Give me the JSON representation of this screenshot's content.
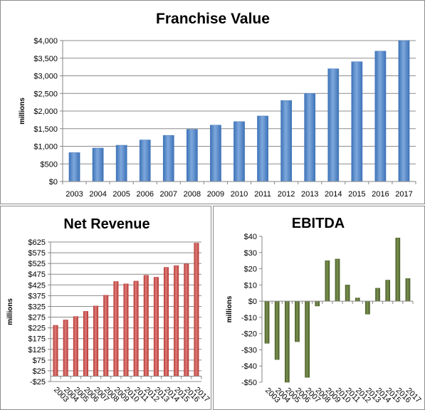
{
  "chart_data": [
    {
      "type": "bar",
      "title": "Franchise Value",
      "xlabel": "",
      "ylabel": "millions",
      "categories": [
        "2003",
        "2004",
        "2005",
        "2006",
        "2007",
        "2008",
        "2009",
        "2010",
        "2011",
        "2012",
        "2013",
        "2014",
        "2015",
        "2016",
        "2017"
      ],
      "values": [
        820,
        950,
        1030,
        1180,
        1310,
        1480,
        1600,
        1700,
        1860,
        2300,
        2500,
        3200,
        3400,
        3700,
        4000
      ],
      "ylim": [
        0,
        4000
      ],
      "yticks": [
        0,
        500,
        1000,
        1500,
        2000,
        2500,
        3000,
        3500,
        4000
      ],
      "ytick_labels": [
        "$0",
        "$500",
        "$1,000",
        "$1,500",
        "$2,000",
        "$2,500",
        "$3,000",
        "$3,500",
        "$4,000"
      ],
      "grid": true,
      "legend": "none",
      "bar_color": "#3d73b8",
      "bar_color_light": "#7fa8dc"
    },
    {
      "type": "bar",
      "title": "Net Revenue",
      "xlabel": "",
      "ylabel": "millions",
      "categories": [
        "2003",
        "2004",
        "2005",
        "2006",
        "2007",
        "2008",
        "2009",
        "2010",
        "2011",
        "2012",
        "2013",
        "2014",
        "2015",
        "2016",
        "2017"
      ],
      "values": [
        237,
        262,
        278,
        302,
        327,
        377,
        441,
        430,
        443,
        470,
        461,
        507,
        515,
        523,
        620
      ],
      "ylim": [
        -25,
        625
      ],
      "yticks": [
        -25,
        25,
        75,
        125,
        175,
        225,
        275,
        325,
        375,
        425,
        475,
        525,
        575,
        625
      ],
      "ytick_labels": [
        "-$25",
        "$25",
        "$75",
        "$125",
        "$175",
        "$225",
        "$275",
        "$325",
        "$375",
        "$425",
        "$475",
        "$525",
        "$575",
        "$625"
      ],
      "grid": true,
      "legend": "none",
      "bar_color": "#b83a36",
      "bar_color_light": "#de7e7a"
    },
    {
      "type": "bar",
      "title": "EBITDA",
      "xlabel": "",
      "ylabel": "millions",
      "categories": [
        "2003",
        "2004",
        "2005",
        "2006",
        "2007",
        "2008",
        "2009",
        "2010",
        "2011",
        "2012",
        "2013",
        "2014",
        "2015",
        "2016",
        "2017"
      ],
      "values": [
        -26,
        -36,
        -50,
        -25,
        -47,
        -3,
        25,
        26,
        10,
        2,
        -8,
        8,
        13,
        39,
        14
      ],
      "ylim": [
        -50,
        40
      ],
      "yticks": [
        -50,
        -40,
        -30,
        -20,
        -10,
        0,
        10,
        20,
        30,
        40
      ],
      "ytick_labels": [
        "-$50",
        "-$40",
        "-$30",
        "-$20",
        "-$10",
        "$0",
        "$10",
        "$20",
        "$30",
        "$40"
      ],
      "grid": false,
      "legend": "none",
      "bar_color": "#4b5e2a",
      "bar_color_light": "#7c9250"
    }
  ]
}
